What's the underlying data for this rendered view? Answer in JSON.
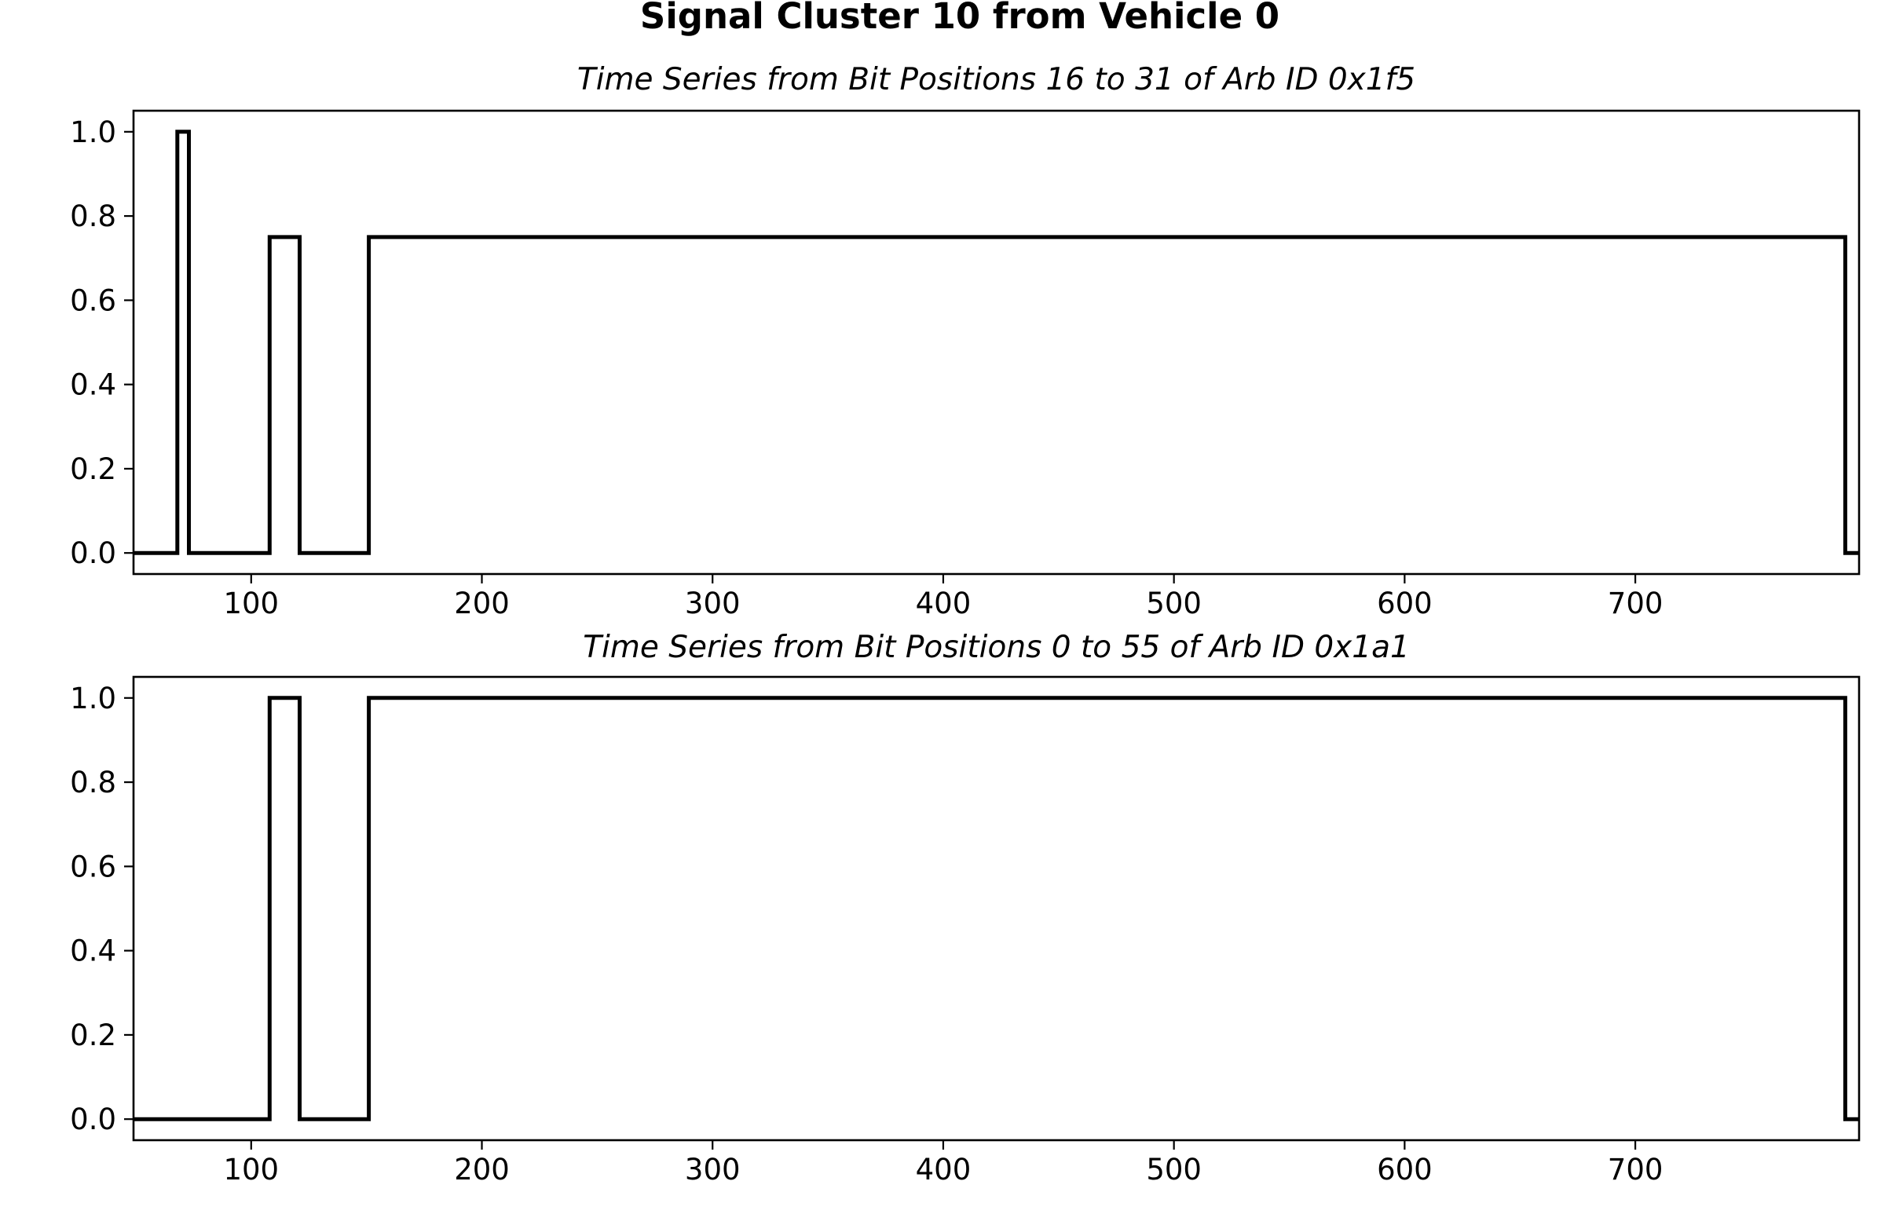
{
  "chart_data": {
    "title": "Signal Cluster 10 from Vehicle 0",
    "panels": [
      {
        "type": "line",
        "title": "Time Series from Bit Positions 16 to 31 of Arb ID 0x1f5",
        "xlim": [
          49,
          797
        ],
        "ylim": [
          -0.05,
          1.05
        ],
        "xticks": [
          100,
          200,
          300,
          400,
          500,
          600,
          700
        ],
        "yticks": [
          0.0,
          0.2,
          0.4,
          0.6,
          0.8,
          1.0
        ],
        "xtick_labels": [
          "100",
          "200",
          "300",
          "400",
          "500",
          "600",
          "700"
        ],
        "ytick_labels": [
          "0.0",
          "0.2",
          "0.4",
          "0.6",
          "0.8",
          "1.0"
        ],
        "grid": false,
        "series": [
          {
            "color": "#000000",
            "step_points": [
              [
                49,
                0
              ],
              [
                68,
                0
              ],
              [
                68,
                1
              ],
              [
                73,
                1
              ],
              [
                73,
                0
              ],
              [
                108,
                0
              ],
              [
                108,
                0.75
              ],
              [
                121,
                0.75
              ],
              [
                121,
                0
              ],
              [
                151,
                0
              ],
              [
                151,
                0.75
              ],
              [
                791,
                0.75
              ],
              [
                791,
                0
              ],
              [
                797,
                0
              ]
            ]
          }
        ]
      },
      {
        "type": "line",
        "title": "Time Series from Bit Positions 0 to 55 of Arb ID 0x1a1",
        "xlim": [
          49,
          797
        ],
        "ylim": [
          -0.05,
          1.05
        ],
        "xticks": [
          100,
          200,
          300,
          400,
          500,
          600,
          700
        ],
        "yticks": [
          0.0,
          0.2,
          0.4,
          0.6,
          0.8,
          1.0
        ],
        "xtick_labels": [
          "100",
          "200",
          "300",
          "400",
          "500",
          "600",
          "700"
        ],
        "ytick_labels": [
          "0.0",
          "0.2",
          "0.4",
          "0.6",
          "0.8",
          "1.0"
        ],
        "grid": false,
        "series": [
          {
            "color": "#000000",
            "step_points": [
              [
                49,
                0
              ],
              [
                108,
                0
              ],
              [
                108,
                1
              ],
              [
                121,
                1
              ],
              [
                121,
                0
              ],
              [
                151,
                0
              ],
              [
                151,
                1
              ],
              [
                791,
                1
              ],
              [
                791,
                0
              ],
              [
                797,
                0
              ]
            ]
          }
        ]
      }
    ]
  }
}
